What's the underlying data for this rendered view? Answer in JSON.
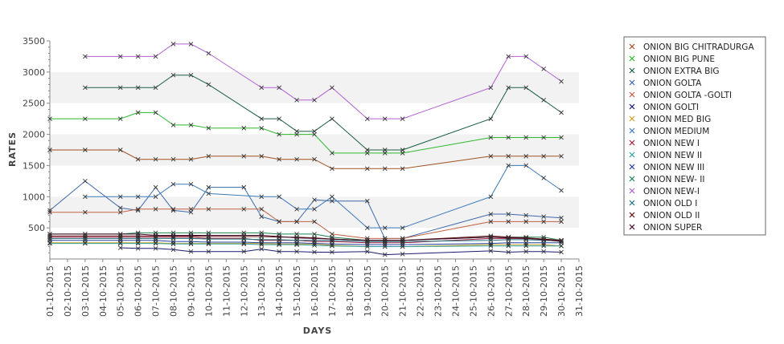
{
  "chart_data": {
    "type": "line",
    "title": "",
    "xlabel": "DAYS",
    "ylabel": "RATES",
    "ylim": [
      0,
      3500
    ],
    "yticks": [
      500,
      1000,
      1500,
      2000,
      2500,
      3000,
      3500
    ],
    "grid": "alternating horizontal bands",
    "legend": "right",
    "x": [
      "01-10-2015",
      "02-10-2015",
      "03-10-2015",
      "04-10-2015",
      "05-10-2015",
      "06-10-2015",
      "07-10-2015",
      "08-10-2015",
      "09-10-2015",
      "10-10-2015",
      "11-10-2015",
      "12-10-2015",
      "13-10-2015",
      "14-10-2015",
      "15-10-2015",
      "16-10-2015",
      "17-10-2015",
      "18-10-2015",
      "19-10-2015",
      "20-10-2015",
      "21-10-2015",
      "22-10-2015",
      "23-10-2015",
      "24-10-2015",
      "25-10-2015",
      "26-10-2015",
      "27-10-2015",
      "28-10-2015",
      "29-10-2015",
      "30-10-2015",
      "31-10-2015"
    ],
    "series": [
      {
        "name": "ONION BIG CHITRADURGA",
        "color": "#a05020",
        "values": [
          1750,
          null,
          1750,
          null,
          1750,
          1600,
          1600,
          1600,
          1600,
          1650,
          null,
          1650,
          1650,
          1600,
          1600,
          1600,
          1450,
          null,
          1450,
          1450,
          1450,
          null,
          null,
          null,
          null,
          1650,
          1650,
          1650,
          1650,
          1650,
          null
        ]
      },
      {
        "name": "ONION BIG PUNE",
        "color": "#2db82d",
        "values": [
          2250,
          null,
          2250,
          null,
          2250,
          2350,
          2350,
          2150,
          2150,
          2100,
          null,
          2100,
          2100,
          2000,
          2000,
          2000,
          1700,
          null,
          1700,
          1700,
          1700,
          null,
          null,
          null,
          null,
          1950,
          1950,
          1950,
          1950,
          1950,
          null
        ]
      },
      {
        "name": "ONION EXTRA BIG",
        "color": "#1b5e44",
        "values": [
          null,
          null,
          2750,
          null,
          2750,
          2750,
          2750,
          2950,
          2950,
          2800,
          null,
          null,
          2250,
          2250,
          2050,
          2050,
          2250,
          null,
          1750,
          1750,
          1750,
          null,
          null,
          null,
          null,
          2250,
          2750,
          2750,
          2550,
          2350,
          null
        ]
      },
      {
        "name": "ONION GOLTA",
        "color": "#3d68a8",
        "values": [
          780,
          null,
          1250,
          null,
          820,
          780,
          1150,
          780,
          750,
          1150,
          null,
          1150,
          680,
          600,
          600,
          950,
          930,
          null,
          930,
          330,
          330,
          null,
          null,
          null,
          null,
          720,
          720,
          700,
          680,
          660,
          null
        ]
      },
      {
        "name": "ONION GOLTA -GOLTI",
        "color": "#c06040",
        "values": [
          750,
          null,
          750,
          null,
          750,
          800,
          800,
          800,
          800,
          800,
          null,
          800,
          800,
          600,
          600,
          600,
          400,
          null,
          330,
          330,
          330,
          null,
          null,
          null,
          null,
          600,
          600,
          600,
          600,
          600,
          null
        ]
      },
      {
        "name": "ONION GOLTI",
        "color": "#1a1a70",
        "values": [
          null,
          null,
          null,
          null,
          180,
          170,
          170,
          150,
          120,
          120,
          null,
          120,
          160,
          120,
          120,
          110,
          110,
          null,
          120,
          70,
          80,
          null,
          null,
          null,
          null,
          130,
          110,
          120,
          120,
          110,
          null
        ]
      },
      {
        "name": "ONION MED BIG",
        "color": "#c8a020",
        "values": [
          260,
          null,
          260,
          null,
          260,
          260,
          260,
          250,
          250,
          250,
          null,
          250,
          250,
          240,
          240,
          240,
          220,
          null,
          200,
          200,
          200,
          null,
          null,
          null,
          null,
          230,
          230,
          230,
          230,
          210,
          null
        ]
      },
      {
        "name": "ONION MEDIUM",
        "color": "#3a7ab8",
        "values": [
          null,
          null,
          1000,
          null,
          1000,
          1000,
          1000,
          1200,
          1200,
          1050,
          null,
          null,
          1000,
          1000,
          800,
          800,
          1000,
          null,
          500,
          500,
          500,
          null,
          null,
          null,
          null,
          1000,
          1500,
          1500,
          1300,
          1100,
          null
        ]
      },
      {
        "name": "ONION NEW I",
        "color": "#a02040",
        "values": [
          350,
          null,
          350,
          null,
          350,
          350,
          350,
          350,
          350,
          330,
          null,
          330,
          300,
          300,
          300,
          280,
          280,
          null,
          260,
          260,
          260,
          null,
          null,
          null,
          null,
          330,
          330,
          330,
          320,
          300,
          null
        ]
      },
      {
        "name": "ONION NEW II",
        "color": "#30a0a0",
        "values": [
          250,
          null,
          250,
          null,
          250,
          250,
          250,
          240,
          240,
          240,
          null,
          240,
          230,
          230,
          230,
          220,
          210,
          null,
          200,
          200,
          200,
          null,
          null,
          null,
          null,
          210,
          210,
          210,
          210,
          210,
          null
        ]
      },
      {
        "name": "ONION NEW III",
        "color": "#2040a0",
        "values": [
          300,
          null,
          300,
          null,
          300,
          300,
          300,
          280,
          280,
          270,
          null,
          270,
          260,
          260,
          260,
          250,
          240,
          null,
          230,
          230,
          230,
          null,
          null,
          null,
          null,
          250,
          260,
          260,
          260,
          260,
          null
        ]
      },
      {
        "name": "ONION NEW- II",
        "color": "#208050",
        "values": [
          400,
          null,
          400,
          null,
          400,
          420,
          420,
          420,
          420,
          420,
          null,
          420,
          420,
          400,
          400,
          400,
          350,
          null,
          300,
          300,
          300,
          null,
          null,
          null,
          null,
          350,
          350,
          350,
          350,
          300,
          null
        ]
      },
      {
        "name": "ONION NEW-I",
        "color": "#b060d0",
        "values": [
          null,
          null,
          3250,
          null,
          3250,
          3250,
          3250,
          3450,
          3450,
          3300,
          null,
          null,
          2750,
          2750,
          2550,
          2550,
          2750,
          null,
          2250,
          2250,
          2250,
          null,
          null,
          null,
          null,
          2750,
          3250,
          3250,
          3050,
          2850,
          null
        ]
      },
      {
        "name": "ONION OLD I",
        "color": "#207080",
        "values": [
          330,
          null,
          330,
          null,
          330,
          330,
          330,
          330,
          330,
          320,
          null,
          320,
          310,
          310,
          300,
          300,
          300,
          null,
          280,
          280,
          280,
          null,
          null,
          null,
          null,
          300,
          310,
          310,
          300,
          290,
          null
        ]
      },
      {
        "name": "ONION OLD II",
        "color": "#601010",
        "values": [
          370,
          null,
          370,
          null,
          370,
          370,
          370,
          370,
          370,
          360,
          null,
          360,
          360,
          350,
          350,
          340,
          320,
          null,
          300,
          300,
          300,
          null,
          null,
          null,
          null,
          370,
          350,
          340,
          320,
          300,
          null
        ]
      },
      {
        "name": "ONION SUPER",
        "color": "#400828",
        "values": [
          400,
          null,
          400,
          null,
          400,
          400,
          380,
          380,
          380,
          380,
          null,
          380,
          380,
          360,
          340,
          330,
          320,
          null,
          300,
          300,
          300,
          null,
          null,
          null,
          null,
          350,
          340,
          330,
          310,
          280,
          null
        ]
      }
    ]
  }
}
